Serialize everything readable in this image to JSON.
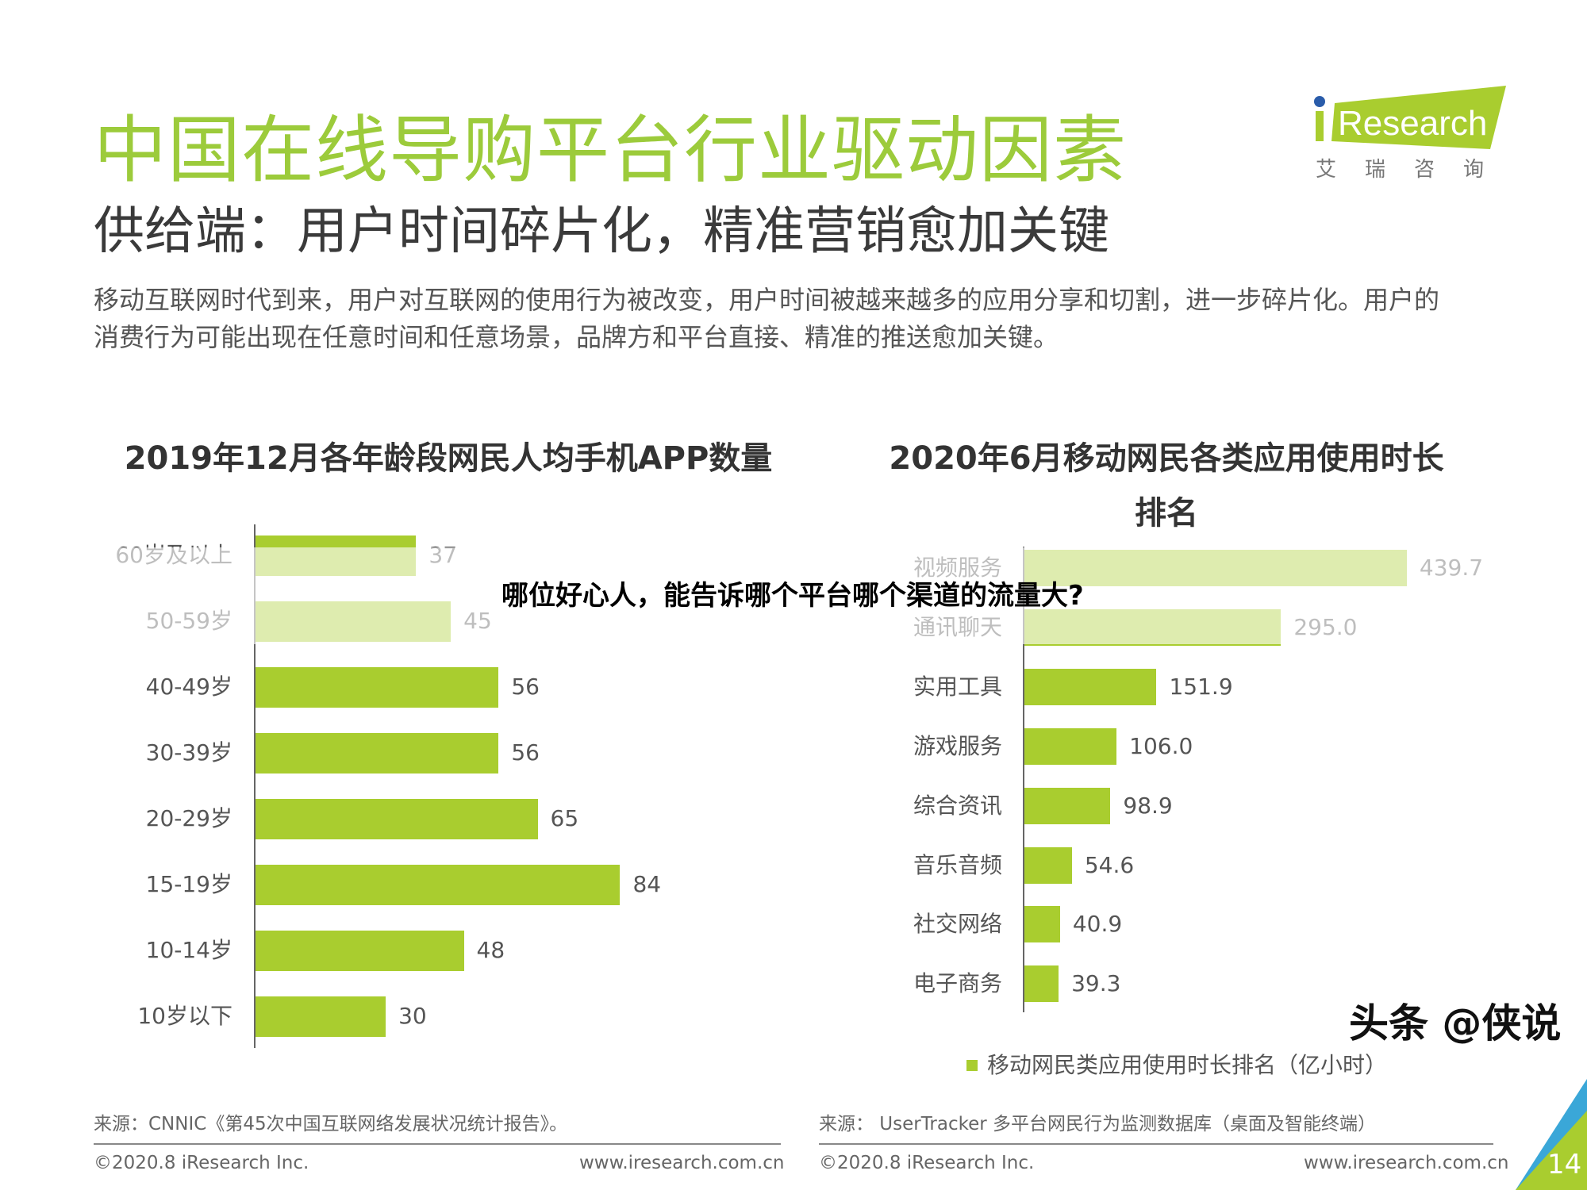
{
  "header": {
    "title": "中国在线导购平台行业驱动因素",
    "subtitle": "供给端：用户时间碎片化，精准营销愈加关键",
    "paragraph_lines": [
      "移动互联网时代到来，用户对互联网的使用行为被改变，用户时间被越来越多的应用分享和切割，进一步碎片化。用户的",
      "消费行为可能出现在任意时间和任意场景，品牌方和平台直接、精准的推送愈加关键。"
    ]
  },
  "logo": {
    "text": "iResearch",
    "cn": "艾 瑞 咨 询",
    "color": "#a9cd2f",
    "dot_color": "#2a5caa"
  },
  "chart_data": [
    {
      "type": "bar",
      "orientation": "horizontal",
      "title": "2019年12月各年龄段网民人均手机APP数量",
      "categories": [
        "60岁及以上",
        "50-59岁",
        "40-49岁",
        "30-39岁",
        "20-29岁",
        "15-19岁",
        "10-14岁",
        "10岁以下"
      ],
      "values": [
        37,
        45,
        56,
        56,
        65,
        84,
        48,
        30
      ],
      "value_labels": [
        "37",
        "45",
        "56",
        "56",
        "65",
        "84",
        "48",
        "30"
      ],
      "xlim": [
        0,
        90
      ],
      "grid": false,
      "color": "#a9cd2f"
    },
    {
      "type": "bar",
      "orientation": "horizontal",
      "title_lines": [
        "2020年6月移动网民各类应用使用时长",
        "排名"
      ],
      "categories": [
        "视频服务",
        "通讯聊天",
        "实用工具",
        "游戏服务",
        "综合资讯",
        "音乐音频",
        "社交网络",
        "电子商务"
      ],
      "values": [
        439.7,
        295.0,
        151.9,
        106.0,
        98.9,
        54.6,
        40.9,
        39.3
      ],
      "value_labels": [
        "439.7",
        "295.0",
        "151.9",
        "106.0",
        "98.9",
        "54.6",
        "40.9",
        "39.3"
      ],
      "xlim": [
        0,
        450
      ],
      "grid": false,
      "legend": {
        "label": "移动网民类应用使用时长排名（亿小时）",
        "placement": "bottom"
      },
      "color": "#a9cd2f"
    }
  ],
  "footer": {
    "left_source": "来源：CNNIC《第45次中国互联网络发展状况统计报告》。",
    "right_source": "来源： UserTracker 多平台网民行为监测数据库（桌面及智能终端）",
    "copyright_left": "©2020.8 iResearch Inc.",
    "url_left": "www.iresearch.com.cn",
    "copyright_right": "©2020.8 iResearch Inc.",
    "url_right": "www.iresearch.com.cn",
    "page_number": "14"
  },
  "overlay": {
    "caption": "哪位好心人，能告诉哪个平台哪个渠道的流量大?",
    "watermark": "头条 @侠说"
  }
}
